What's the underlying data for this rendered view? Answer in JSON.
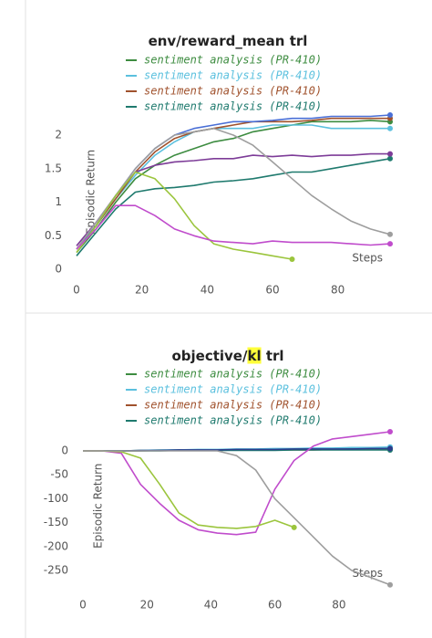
{
  "chart_data": [
    {
      "type": "line",
      "title": [
        "env/reward_mean trl"
      ],
      "xlabel": "Steps",
      "ylabel": "Episodic Return",
      "x": [
        0,
        6,
        12,
        18,
        24,
        30,
        36,
        42,
        48,
        54,
        60,
        66,
        72,
        78,
        84,
        90,
        96
      ],
      "xlim": [
        0,
        96
      ],
      "xticks": [
        0,
        20,
        40,
        60,
        80
      ],
      "ylim": [
        0,
        2.3
      ],
      "yticks": [
        0,
        0.5,
        1,
        1.5,
        2
      ],
      "series": [
        {
          "name": "sentiment analysis (PR-410)",
          "color": "#3d8c40",
          "values": [
            0.25,
            0.6,
            1.0,
            1.35,
            1.55,
            1.7,
            1.8,
            1.9,
            1.95,
            2.05,
            2.1,
            2.15,
            2.2,
            2.2,
            2.2,
            2.22,
            2.2
          ]
        },
        {
          "name": "sentiment analysis (PR-410)",
          "color": "#5bc0de",
          "values": [
            0.3,
            0.65,
            1.05,
            1.4,
            1.7,
            1.9,
            2.05,
            2.1,
            2.1,
            2.1,
            2.15,
            2.15,
            2.15,
            2.1,
            2.1,
            2.1,
            2.1
          ]
        },
        {
          "name": "sentiment analysis (PR-410)",
          "color": "#a0522d",
          "values": [
            0.3,
            0.65,
            1.05,
            1.45,
            1.75,
            1.95,
            2.05,
            2.1,
            2.15,
            2.2,
            2.2,
            2.2,
            2.22,
            2.25,
            2.25,
            2.25,
            2.25
          ]
        },
        {
          "name": "sentiment analysis (PR-410)",
          "color": "#1f7a6e",
          "values": [
            0.2,
            0.55,
            0.9,
            1.15,
            1.2,
            1.22,
            1.25,
            1.3,
            1.32,
            1.35,
            1.4,
            1.45,
            1.45,
            1.5,
            1.55,
            1.6,
            1.65
          ]
        },
        {
          "color": "#7d3c98",
          "values": [
            0.35,
            0.7,
            1.1,
            1.45,
            1.55,
            1.6,
            1.62,
            1.65,
            1.65,
            1.7,
            1.68,
            1.7,
            1.68,
            1.7,
            1.7,
            1.72,
            1.72
          ]
        },
        {
          "color": "#4a6fd6",
          "values": [
            0.3,
            0.65,
            1.1,
            1.5,
            1.8,
            2.0,
            2.1,
            2.15,
            2.2,
            2.2,
            2.22,
            2.25,
            2.25,
            2.28,
            2.28,
            2.28,
            2.3
          ]
        },
        {
          "color": "#9e9e9e",
          "values": [
            0.3,
            0.7,
            1.1,
            1.5,
            1.8,
            2.0,
            2.05,
            2.1,
            2.0,
            1.85,
            1.6,
            1.35,
            1.1,
            0.9,
            0.72,
            0.6,
            0.52
          ]
        },
        {
          "color": "#9bc53d",
          "values": [
            0.25,
            0.65,
            1.1,
            1.45,
            1.35,
            1.05,
            0.65,
            0.38,
            0.3,
            0.25,
            0.2,
            0.15,
            null,
            null,
            null,
            null,
            null
          ]
        },
        {
          "color": "#c04ccc",
          "values": [
            0.3,
            0.6,
            0.95,
            0.95,
            0.8,
            0.6,
            0.5,
            0.42,
            0.4,
            0.38,
            0.42,
            0.4,
            0.4,
            0.4,
            0.38,
            0.36,
            0.38
          ]
        }
      ]
    },
    {
      "type": "line",
      "title": [
        "objective/",
        "kl",
        " trl"
      ],
      "highlight": 1,
      "xlabel": "Steps",
      "ylabel": "Episodic Return",
      "x": [
        0,
        6,
        12,
        18,
        24,
        30,
        36,
        42,
        48,
        54,
        60,
        66,
        72,
        78,
        84,
        90,
        96
      ],
      "xlim": [
        0,
        96
      ],
      "xticks": [
        0,
        20,
        40,
        60,
        80
      ],
      "ylim": [
        -280,
        50
      ],
      "yticks": [
        0,
        -50,
        -100,
        -150,
        -200,
        -250
      ],
      "series": [
        {
          "name": "sentiment analysis (PR-410)",
          "color": "#3d8c40",
          "values": [
            0,
            0,
            0,
            1,
            1,
            2,
            2,
            2,
            3,
            3,
            3,
            4,
            4,
            4,
            5,
            5,
            5
          ]
        },
        {
          "name": "sentiment analysis (PR-410)",
          "color": "#5bc0de",
          "values": [
            0,
            0,
            0,
            1,
            2,
            2,
            3,
            3,
            4,
            4,
            5,
            5,
            6,
            6,
            7,
            7,
            8
          ]
        },
        {
          "name": "sentiment analysis (PR-410)",
          "color": "#a0522d",
          "values": [
            0,
            0,
            0,
            0,
            1,
            1,
            1,
            1,
            2,
            2,
            2,
            2,
            2,
            3,
            3,
            3,
            3
          ]
        },
        {
          "name": "sentiment analysis (PR-410)",
          "color": "#1f7a6e",
          "values": [
            0,
            0,
            0,
            0,
            0,
            1,
            1,
            1,
            1,
            1,
            1,
            2,
            2,
            2,
            2,
            2,
            2
          ]
        },
        {
          "color": "#2c3e8c",
          "values": [
            0,
            0,
            0,
            1,
            1,
            2,
            2,
            2,
            3,
            3,
            3,
            4,
            4,
            4,
            4,
            5,
            5
          ]
        },
        {
          "color": "#c04ccc",
          "values": [
            0,
            0,
            -5,
            -70,
            -110,
            -145,
            -165,
            -172,
            -175,
            -170,
            -80,
            -20,
            10,
            25,
            30,
            35,
            40
          ]
        },
        {
          "color": "#9bc53d",
          "values": [
            0,
            0,
            -2,
            -15,
            -70,
            -130,
            -155,
            -160,
            -162,
            -158,
            -145,
            -160,
            null,
            null,
            null,
            null,
            null
          ]
        },
        {
          "color": "#9e9e9e",
          "values": [
            0,
            0,
            0,
            0,
            0,
            0,
            0,
            0,
            -10,
            -40,
            -100,
            -140,
            -180,
            -220,
            -250,
            -265,
            -280
          ]
        }
      ]
    }
  ]
}
